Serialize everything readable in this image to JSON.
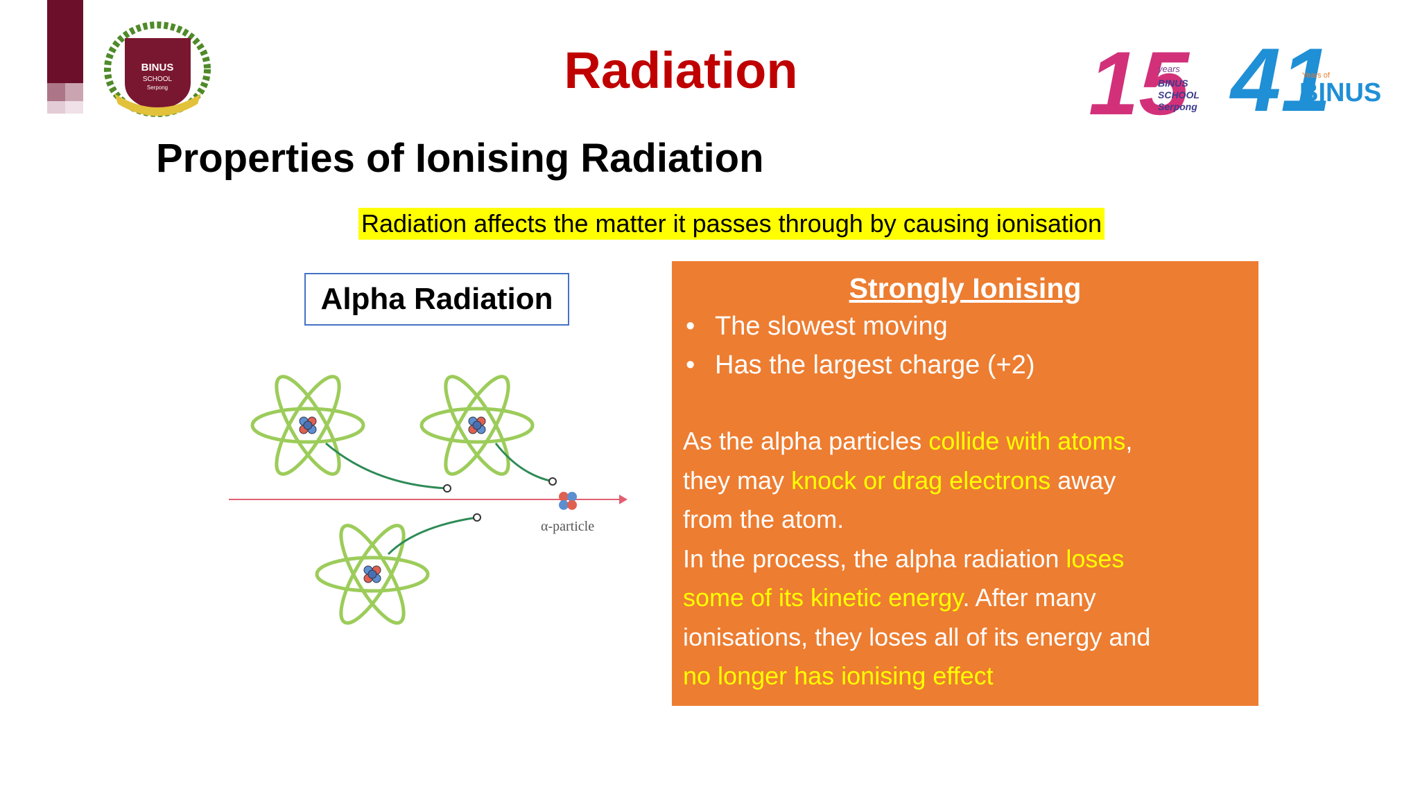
{
  "header": {
    "title": "Radiation",
    "school_logo": [
      "BINUS",
      "SCHOOL",
      "Serpong"
    ],
    "anniversary_logo": {
      "mark": "15",
      "years_label": "years",
      "lines": [
        "BINUS",
        "SCHOOL",
        "Serpong"
      ]
    },
    "binus_logo": {
      "mark": "41",
      "years_of": "Years of",
      "name": "BINUS"
    }
  },
  "slide": {
    "subtitle": "Properties of Ionising Radiation",
    "highlight": "Radiation affects the matter it passes through by causing ionisation",
    "diagram": {
      "label": "Alpha Radiation",
      "particle_label": "α-particle"
    },
    "info_box": {
      "heading": "Strongly Ionising",
      "bullets": [
        "The slowest moving",
        "Has the largest charge (+2)"
      ],
      "lines": [
        [
          {
            "text": "As the alpha particles ",
            "highlight": false
          },
          {
            "text": "collide with atoms",
            "highlight": true
          },
          {
            "text": ",",
            "highlight": false
          }
        ],
        [
          {
            "text": "they may ",
            "highlight": false
          },
          {
            "text": "knock or drag electrons",
            "highlight": true
          },
          {
            "text": " away",
            "highlight": false
          }
        ],
        [
          {
            "text": "from the atom.",
            "highlight": false
          }
        ],
        [
          {
            "text": "In the process, the alpha radiation ",
            "highlight": false
          },
          {
            "text": "loses",
            "highlight": true
          }
        ],
        [
          {
            "text": "some of its kinetic energy",
            "highlight": true
          },
          {
            "text": ". After many",
            "highlight": false
          }
        ],
        [
          {
            "text": "ionisations, they loses all of its energy and",
            "highlight": false
          }
        ],
        [
          {
            "text": "no longer has ionising effect",
            "highlight": true
          }
        ]
      ]
    }
  }
}
